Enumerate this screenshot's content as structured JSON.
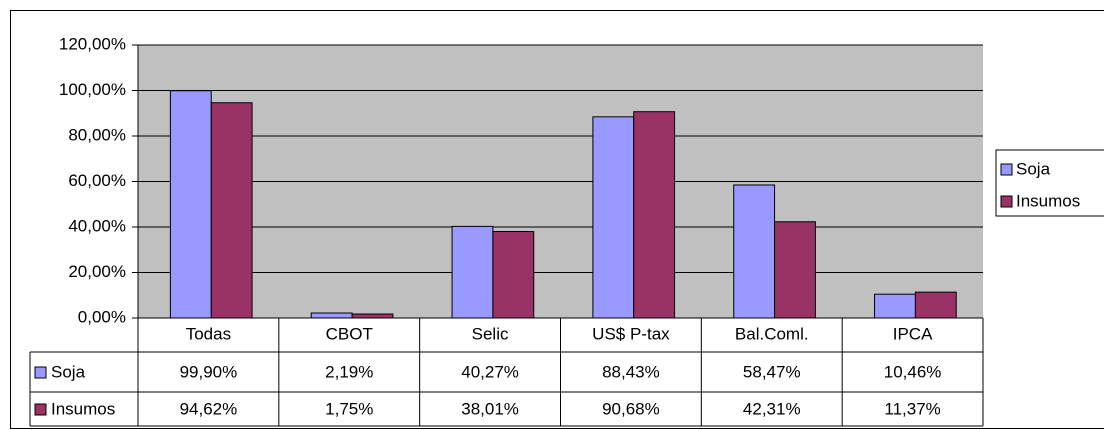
{
  "chart_data": {
    "type": "bar",
    "categories": [
      "Todas",
      "CBOT",
      "Selic",
      "US$ P-tax",
      "Bal.Coml.",
      "IPCA"
    ],
    "series": [
      {
        "name": "Soja",
        "color": "#9999ff",
        "values": [
          99.9,
          2.19,
          40.27,
          88.43,
          58.47,
          10.46
        ],
        "value_labels": [
          "99,90%",
          "2,19%",
          "40,27%",
          "88,43%",
          "58,47%",
          "10,46%"
        ]
      },
      {
        "name": "Insumos",
        "color": "#993366",
        "values": [
          94.62,
          1.75,
          38.01,
          90.68,
          42.31,
          11.37
        ],
        "value_labels": [
          "94,62%",
          "1,75%",
          "38,01%",
          "90,68%",
          "42,31%",
          "11,37%"
        ]
      }
    ],
    "ylim": [
      0,
      120
    ],
    "yticks": [
      {
        "value": 0,
        "label": "0,00%"
      },
      {
        "value": 20,
        "label": "20,00%"
      },
      {
        "value": 40,
        "label": "40,00%"
      },
      {
        "value": 60,
        "label": "60,00%"
      },
      {
        "value": 80,
        "label": "80,00%"
      },
      {
        "value": 100,
        "label": "100,00%"
      },
      {
        "value": 120,
        "label": "120,00%"
      }
    ],
    "grid": true,
    "legend": "right"
  }
}
